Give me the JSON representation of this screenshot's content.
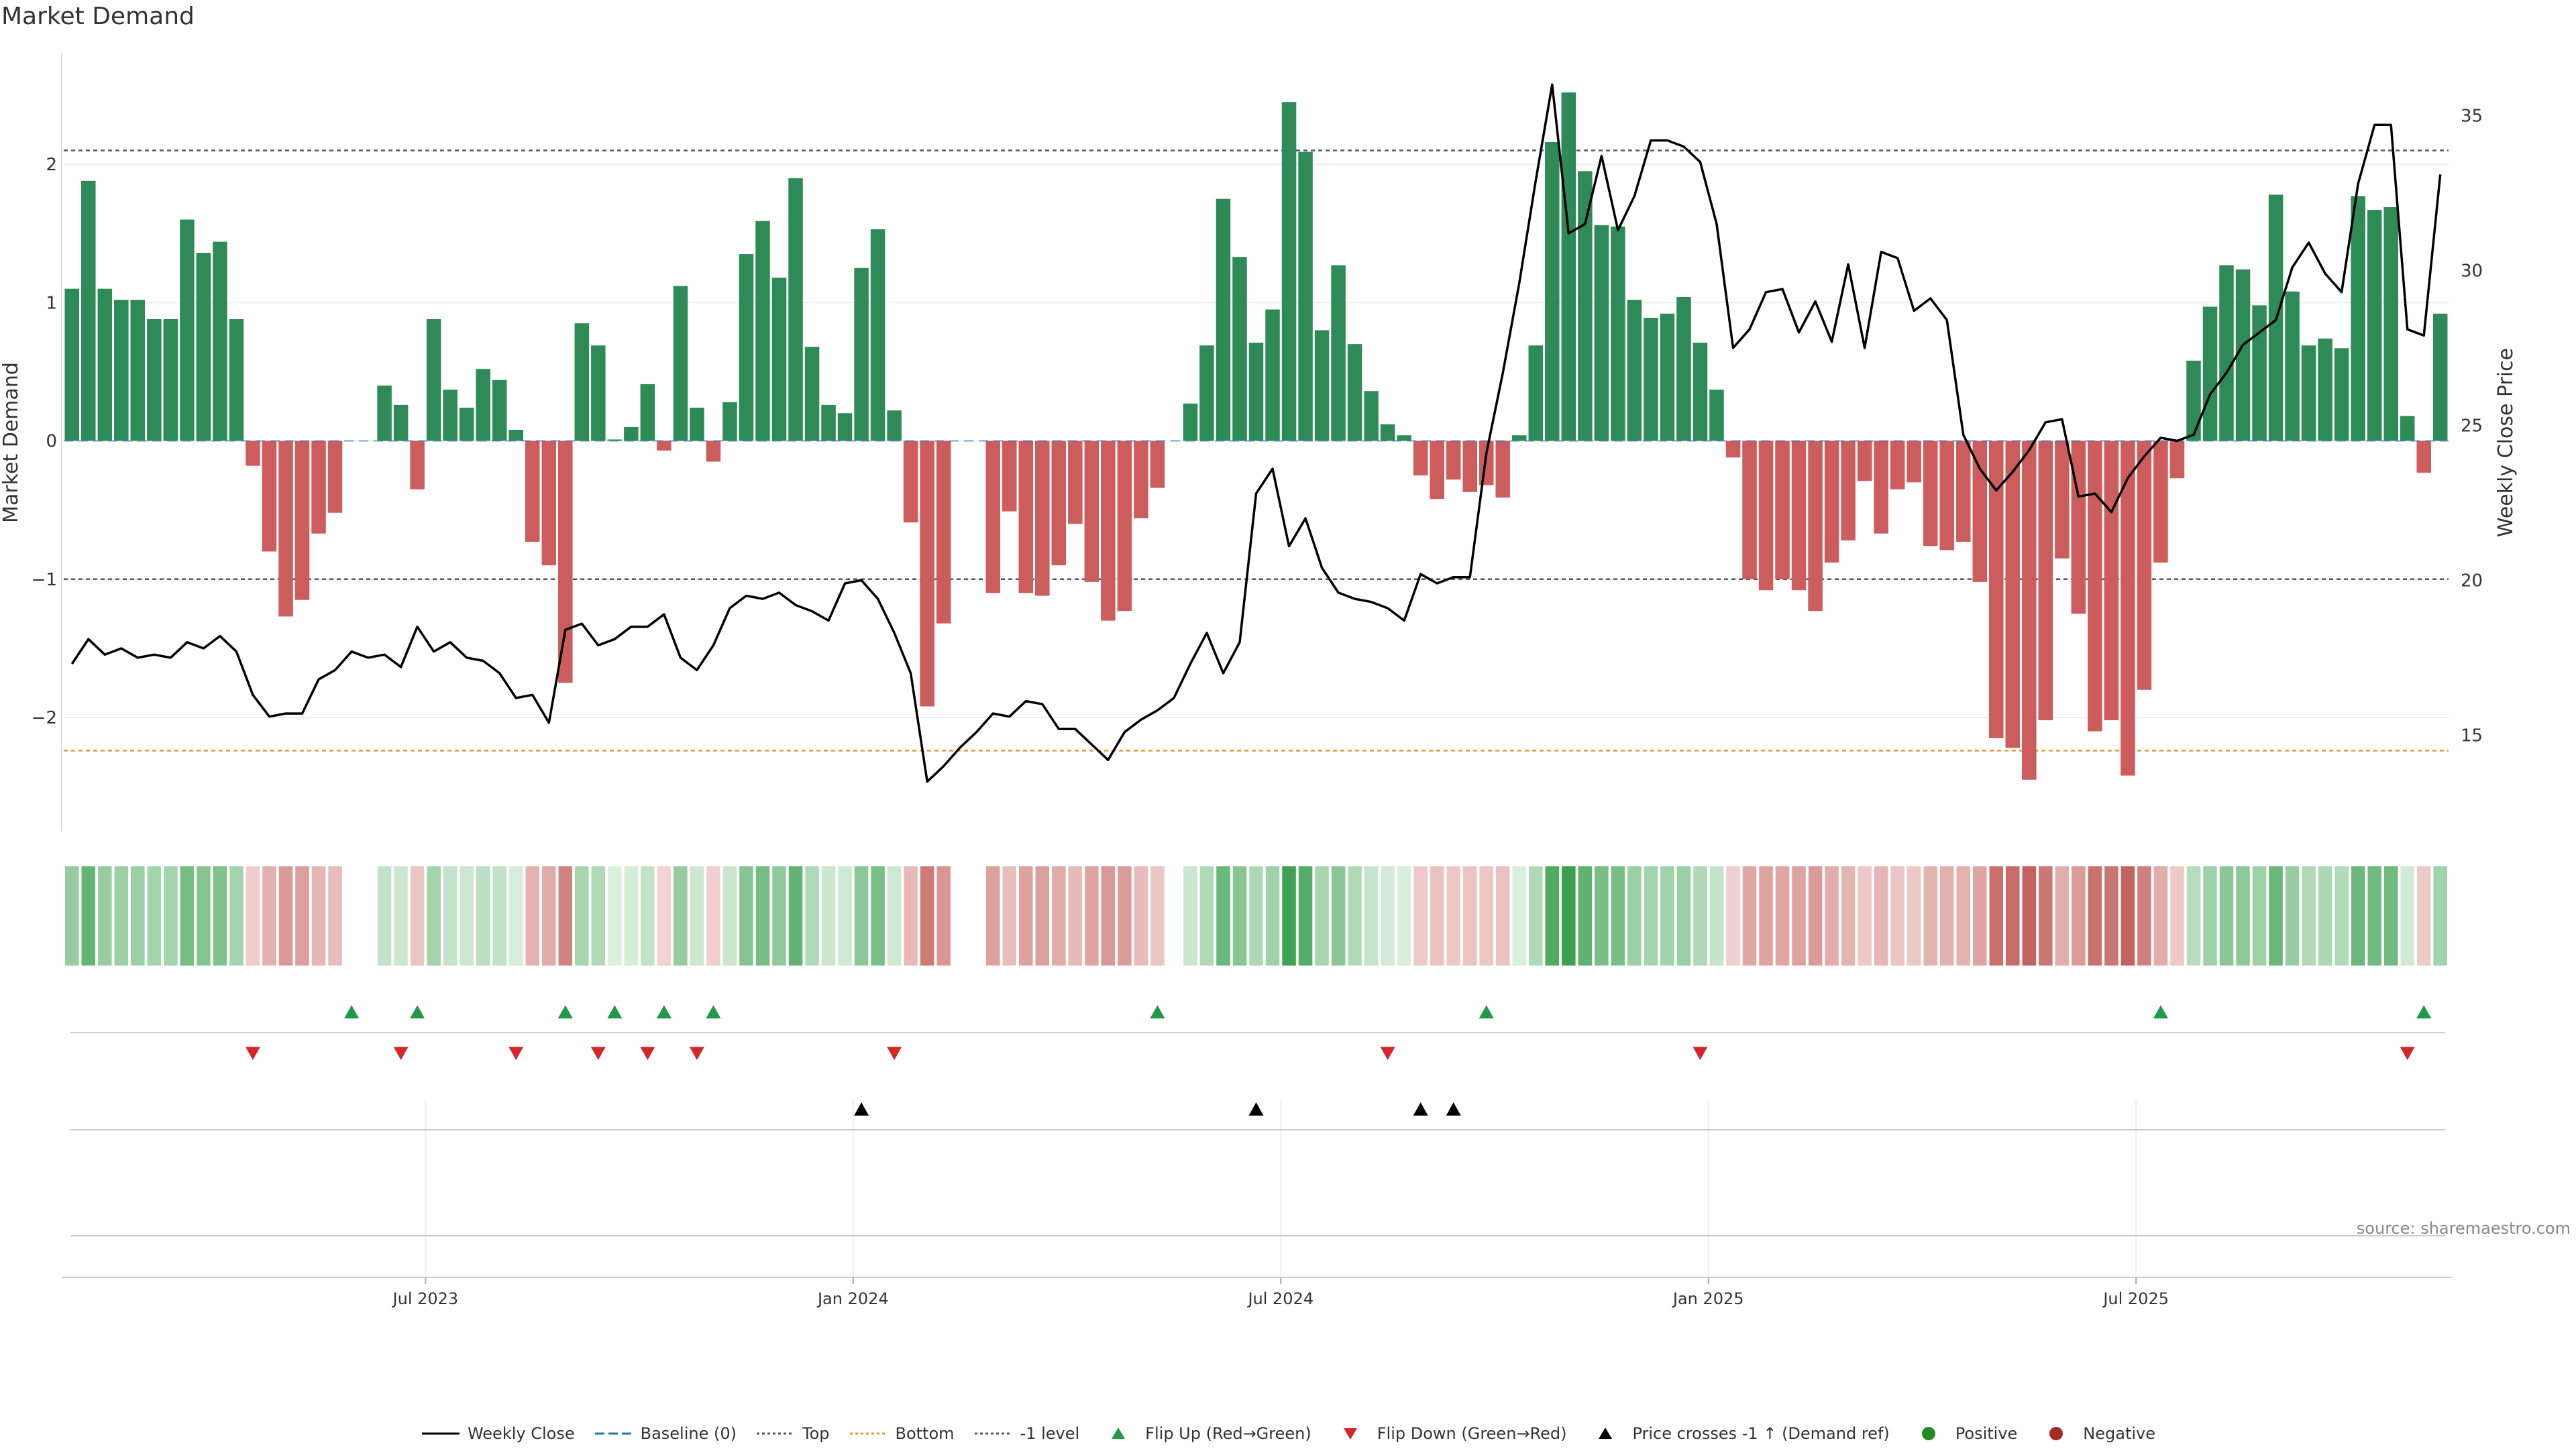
{
  "title": "Market Demand",
  "source": "source: sharemaestro.com",
  "colors": {
    "positive_bar": "#2e8b57",
    "negative_bar": "#cd5c5c",
    "price_line": "#000000",
    "top_line": "#555577",
    "bottom_line": "#e69b2e",
    "minus1_line": "#555577",
    "flip_up": "#22994a",
    "flip_down": "#d62728",
    "cross": "#000000",
    "positive_dot": "#228b22",
    "negative_dot": "#a52a2a"
  },
  "legend": [
    {
      "label": "Weekly Close",
      "kind": "line",
      "color": "#000000"
    },
    {
      "label": "Baseline (0)",
      "kind": "dash",
      "color": "#1f77b4"
    },
    {
      "label": "Top",
      "kind": "dot",
      "color": "#555577"
    },
    {
      "label": "Bottom",
      "kind": "dot",
      "color": "#e69b2e"
    },
    {
      "label": "-1 level",
      "kind": "dot",
      "color": "#555577"
    },
    {
      "label": "Flip Up (Red→Green)",
      "kind": "tri-up",
      "color": "#22994a"
    },
    {
      "label": "Flip Down (Green→Red)",
      "kind": "tri-down",
      "color": "#d62728"
    },
    {
      "label": "Price crosses -1 ↑ (Demand ref)",
      "kind": "tri-up",
      "color": "#000000"
    },
    {
      "label": "Positive",
      "kind": "circle",
      "color": "#228b22"
    },
    {
      "label": "Negative",
      "kind": "circle",
      "color": "#a52a2a"
    }
  ],
  "chart_data": {
    "type": "bar",
    "title": "Market Demand",
    "ylabel": "Market Demand",
    "y2label": "Weekly Close Price",
    "ylim": [
      -2.8,
      2.8
    ],
    "y2lim": [
      12.0,
      37.0
    ],
    "yticks": [
      -2,
      -1,
      0,
      1,
      2
    ],
    "y2ticks": [
      15,
      20,
      25,
      30,
      35
    ],
    "xticks": [
      {
        "label": "Jul 2023",
        "week": 22
      },
      {
        "label": "Jan 2024",
        "week": 48
      },
      {
        "label": "Jul 2024",
        "week": 74
      },
      {
        "label": "Jan 2025",
        "week": 100
      },
      {
        "label": "Jul 2025",
        "week": 126
      }
    ],
    "reference_lines": {
      "top": 2.1,
      "bottom": -2.24,
      "minus1": -1.0,
      "baseline": 0
    },
    "demand": [
      1.1,
      1.88,
      1.1,
      1.02,
      1.02,
      0.88,
      0.88,
      1.6,
      1.36,
      1.44,
      0.88,
      -0.18,
      -0.8,
      -1.27,
      -1.15,
      -0.67,
      -0.52,
      0,
      0,
      0.4,
      0.26,
      -0.35,
      0.88,
      0.37,
      0.24,
      0.52,
      0.44,
      0.08,
      -0.73,
      -0.9,
      -1.75,
      0.85,
      0.69,
      0.01,
      0.1,
      0.41,
      -0.07,
      1.12,
      0.24,
      -0.15,
      0.28,
      1.35,
      1.59,
      1.18,
      1.9,
      0.68,
      0.26,
      0.2,
      1.25,
      1.53,
      0.22,
      -0.59,
      -1.92,
      -1.32,
      0,
      0,
      -1.1,
      -0.51,
      -1.1,
      -1.12,
      -0.9,
      -0.6,
      -1.02,
      -1.3,
      -1.23,
      -0.56,
      -0.34,
      0,
      0.27,
      0.69,
      1.75,
      1.33,
      0.71,
      0.95,
      2.45,
      2.09,
      0.8,
      1.27,
      0.7,
      0.36,
      0.12,
      0.04,
      -0.25,
      -0.42,
      -0.28,
      -0.37,
      -0.32,
      -0.41,
      0.04,
      0.69,
      2.16,
      2.52,
      1.95,
      1.56,
      1.55,
      1.02,
      0.89,
      0.92,
      1.04,
      0.71,
      0.37,
      -0.12,
      -1.0,
      -1.08,
      -1.0,
      -1.08,
      -1.23,
      -0.88,
      -0.72,
      -0.29,
      -0.67,
      -0.35,
      -0.3,
      -0.76,
      -0.79,
      -0.73,
      -1.02,
      -2.15,
      -2.22,
      -2.45,
      -2.02,
      -0.85,
      -1.25,
      -2.1,
      -2.02,
      -2.42,
      -1.8,
      -0.88,
      -0.27,
      0.58,
      0.97,
      1.27,
      1.24,
      0.98,
      1.78,
      1.08,
      0.69,
      0.74,
      0.67,
      1.77,
      1.67,
      1.69,
      0.18,
      -0.23,
      0.92
    ],
    "price": [
      17.3,
      18.1,
      17.6,
      17.8,
      17.5,
      17.6,
      17.5,
      18.0,
      17.8,
      18.2,
      17.7,
      16.3,
      15.6,
      15.7,
      15.7,
      16.8,
      17.1,
      17.7,
      17.5,
      17.6,
      17.2,
      18.5,
      17.7,
      18.0,
      17.5,
      17.4,
      17.0,
      16.2,
      16.3,
      15.4,
      18.4,
      18.6,
      17.9,
      18.1,
      18.5,
      18.5,
      18.9,
      17.5,
      17.1,
      17.9,
      19.1,
      19.5,
      19.4,
      19.6,
      19.2,
      19.0,
      18.7,
      19.9,
      20.0,
      19.4,
      18.3,
      17.0,
      13.5,
      14.0,
      14.6,
      15.1,
      15.7,
      15.6,
      16.1,
      16.0,
      15.2,
      15.2,
      14.7,
      14.2,
      15.1,
      15.5,
      15.8,
      16.2,
      17.3,
      18.3,
      17.0,
      18.0,
      22.8,
      23.6,
      21.1,
      22.0,
      20.4,
      19.6,
      19.4,
      19.3,
      19.1,
      18.7,
      20.2,
      19.9,
      20.1,
      20.1,
      24.1,
      26.7,
      29.6,
      32.9,
      36.0,
      31.2,
      31.5,
      33.7,
      31.3,
      32.4,
      34.2,
      34.2,
      34.0,
      33.5,
      31.5,
      27.5,
      28.1,
      29.3,
      29.4,
      28.0,
      29.0,
      27.7,
      30.2,
      27.5,
      30.6,
      30.4,
      28.7,
      29.1,
      28.4,
      24.7,
      23.6,
      22.9,
      23.5,
      24.2,
      25.1,
      25.2,
      22.7,
      22.8,
      22.2,
      23.3,
      24.0,
      24.6,
      24.5,
      24.7,
      26.0,
      26.7,
      27.6,
      28.0,
      28.4,
      30.1,
      30.9,
      29.9,
      29.3,
      32.8,
      34.7,
      34.7,
      28.1,
      27.9,
      33.1
    ],
    "flip_up_weeks": [
      17,
      21,
      30,
      33,
      36,
      39,
      66,
      86,
      127,
      143
    ],
    "flip_down_weeks": [
      11,
      20,
      27,
      32,
      35,
      38,
      50,
      80,
      99,
      142
    ],
    "price_cross_weeks": [
      48,
      72,
      82,
      84
    ]
  }
}
